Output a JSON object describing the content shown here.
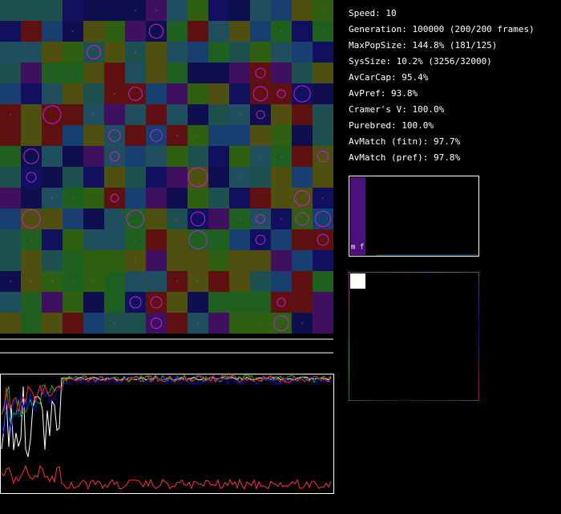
{
  "stats": [
    "Speed: 10",
    "Generation: 100000 (200/200 frames)",
    "MaxPopSize: 144.8% (181/125)",
    "SysSize: 10.2% (3256/32000)",
    "AvCarCap: 95.4%",
    "AvPref: 93.8%",
    "Cramer's V: 100.0%",
    "Purebred: 100.0%",
    "AvMatch (fitn): 97.7%",
    "AvMatch (pref): 97.8%"
  ],
  "histogram_label": "m f"
}
